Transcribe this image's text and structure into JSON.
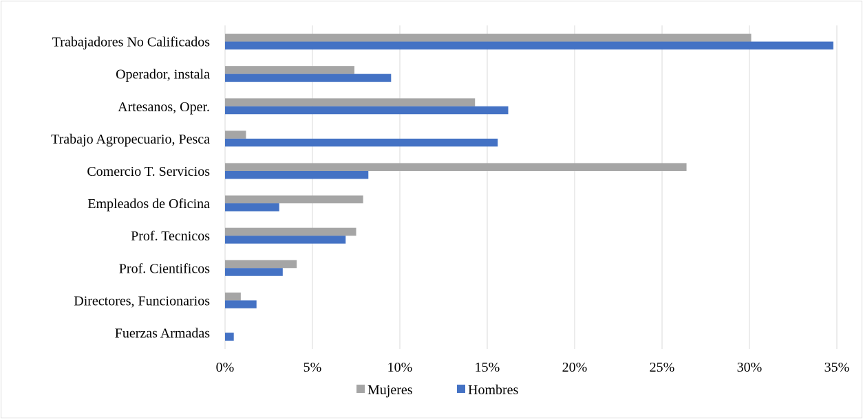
{
  "chart_data": {
    "type": "bar",
    "orientation": "horizontal",
    "categories": [
      "Trabajadores No Calificados",
      "Operador, instala",
      "Artesanos, Oper.",
      "Trabajo Agropecuario, Pesca",
      "Comercio T. Servicios",
      "Empleados de Oficina",
      "Prof. Tecnicos",
      "Prof. Cientificos",
      "Directores, Funcionarios",
      "Fuerzas Armadas"
    ],
    "series": [
      {
        "name": "Mujeres",
        "color": "#a5a5a5",
        "values": [
          30.1,
          7.4,
          14.3,
          1.2,
          26.4,
          7.9,
          7.5,
          4.1,
          0.9,
          0.0
        ]
      },
      {
        "name": "Hombres",
        "color": "#4472c4",
        "values": [
          34.8,
          9.5,
          16.2,
          15.6,
          8.2,
          3.1,
          6.9,
          3.3,
          1.8,
          0.5
        ]
      }
    ],
    "xlim": [
      0,
      35
    ],
    "xticks": [
      "0%",
      "5%",
      "10%",
      "15%",
      "20%",
      "25%",
      "30%",
      "35%"
    ],
    "xtick_values": [
      0,
      5,
      10,
      15,
      20,
      25,
      30,
      35
    ],
    "grid": true,
    "legend_position": "bottom",
    "title": "",
    "xlabel": "",
    "ylabel": ""
  }
}
